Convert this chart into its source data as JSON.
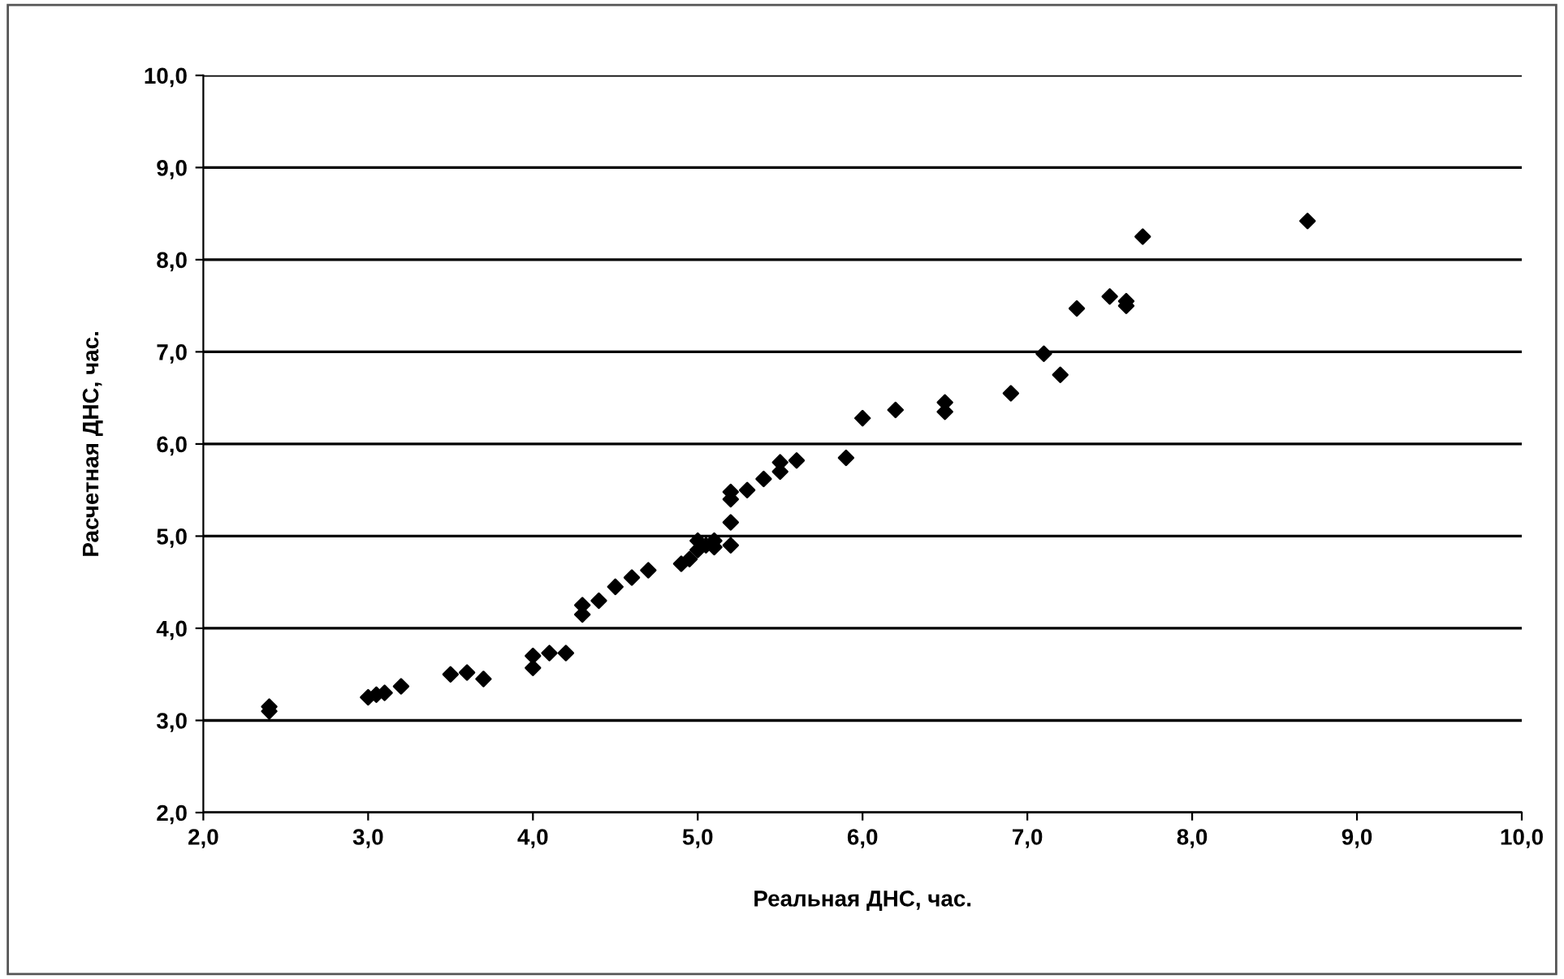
{
  "chart_data": {
    "type": "scatter",
    "xlabel": "Реальная ДНС, час.",
    "ylabel": "Расчетная ДНС, час.",
    "series": [
      {
        "color": "#000000",
        "x": [
          2.4,
          2.4,
          3.0,
          3.05,
          3.1,
          3.2,
          3.5,
          3.6,
          3.7,
          4.0,
          4.0,
          4.1,
          4.2,
          4.3,
          4.3,
          4.4,
          4.5,
          4.6,
          4.7,
          4.9,
          4.95,
          5.0,
          5.0,
          5.05,
          5.1,
          5.1,
          5.2,
          5.2,
          5.2,
          5.2,
          5.3,
          5.4,
          5.5,
          5.5,
          5.6,
          5.9,
          6.0,
          6.2,
          6.5,
          6.5,
          6.9,
          7.1,
          7.2,
          7.3,
          7.5,
          7.6,
          7.6,
          7.7,
          8.7
        ],
        "values": [
          3.15,
          3.1,
          3.25,
          3.28,
          3.3,
          3.37,
          3.5,
          3.52,
          3.45,
          3.7,
          3.57,
          3.73,
          3.73,
          4.15,
          4.25,
          4.3,
          4.45,
          4.55,
          4.63,
          4.7,
          4.75,
          4.85,
          4.95,
          4.9,
          4.95,
          4.88,
          4.9,
          5.15,
          5.4,
          5.48,
          5.5,
          5.62,
          5.7,
          5.8,
          5.82,
          5.85,
          6.28,
          6.37,
          6.35,
          6.45,
          6.55,
          6.98,
          6.75,
          7.47,
          7.6,
          7.55,
          7.5,
          8.25,
          8.42
        ]
      }
    ],
    "xlim": [
      2,
      10
    ],
    "ylim": [
      2,
      10
    ],
    "xticks": [
      {
        "value": 2,
        "label": "2,0"
      },
      {
        "value": 3,
        "label": "3,0"
      },
      {
        "value": 4,
        "label": "4,0"
      },
      {
        "value": 5,
        "label": "5,0"
      },
      {
        "value": 6,
        "label": "6,0"
      },
      {
        "value": 7,
        "label": "7,0"
      },
      {
        "value": 8,
        "label": "8,0"
      },
      {
        "value": 9,
        "label": "9,0"
      },
      {
        "value": 10,
        "label": "10,0"
      }
    ],
    "yticks": [
      {
        "value": 2,
        "label": "2,0"
      },
      {
        "value": 3,
        "label": "3,0"
      },
      {
        "value": 4,
        "label": "4,0"
      },
      {
        "value": 5,
        "label": "5,0"
      },
      {
        "value": 6,
        "label": "6,0"
      },
      {
        "value": 7,
        "label": "7,0"
      },
      {
        "value": 8,
        "label": "8,0"
      },
      {
        "value": 9,
        "label": "9,0"
      },
      {
        "value": 10,
        "label": "10,0"
      }
    ],
    "grid": "y",
    "marker": "diamond",
    "legend": false
  }
}
